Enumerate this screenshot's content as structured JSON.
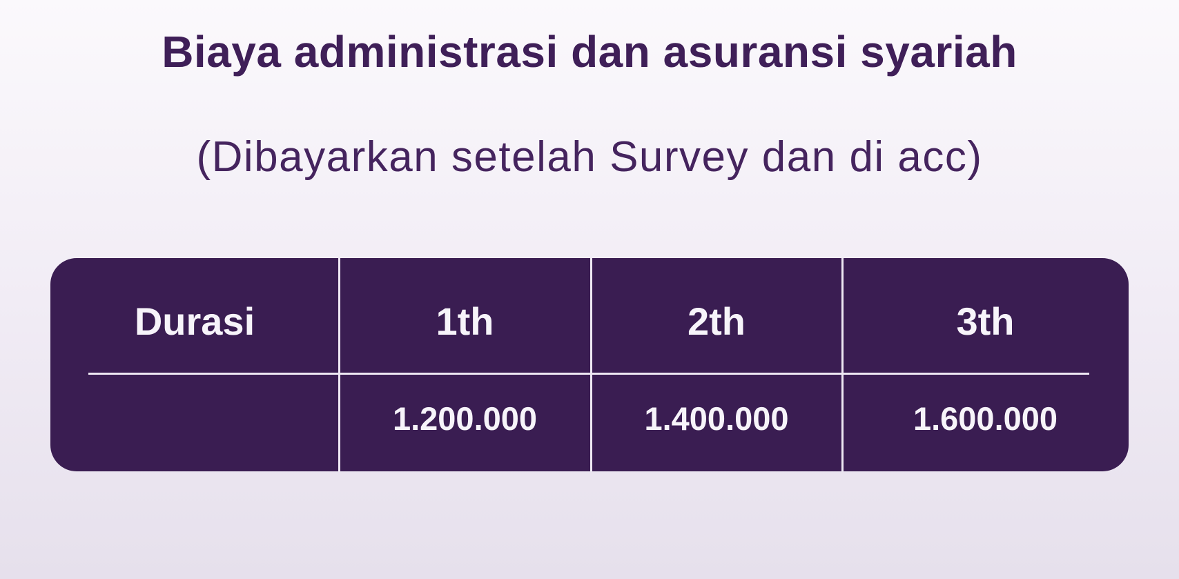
{
  "chart_data": {
    "type": "table",
    "title": "Biaya administrasi dan asuransi syariah",
    "subtitle": "(Dibayarkan setelah Survey dan di acc)",
    "columns": [
      "Durasi",
      "1th",
      "2th",
      "3th"
    ],
    "rows": [
      [
        "",
        "1.200.000",
        "1.400.000",
        "1.600.000"
      ]
    ],
    "layout": {
      "header_divider": "horizontal line under header row",
      "column_dividers": "full-height vertical lines between all 4 columns",
      "corner_style": "rounded"
    }
  },
  "colors": {
    "bg_top": "#fbf9fc",
    "bg_mid": "#f1ecf5",
    "bg_bottom": "#e6e0ec",
    "table_bg": "#3a1d52",
    "table_text": "#f7f4fa",
    "divider": "#eee8f3",
    "title_text": "#3f1f58",
    "subtitle_text": "#45245e"
  }
}
